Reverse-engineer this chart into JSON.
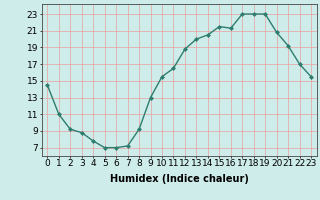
{
  "x": [
    0,
    1,
    2,
    3,
    4,
    5,
    6,
    7,
    8,
    9,
    10,
    11,
    12,
    13,
    14,
    15,
    16,
    17,
    18,
    19,
    20,
    21,
    22,
    23
  ],
  "y": [
    14.5,
    11,
    9.2,
    8.8,
    7.8,
    7.0,
    7.0,
    7.2,
    9.2,
    13.0,
    15.5,
    16.5,
    18.8,
    20.0,
    20.5,
    21.5,
    21.3,
    23.0,
    23.0,
    23.0,
    20.8,
    19.2,
    17.0,
    15.5
  ],
  "line_color": "#2e7d6e",
  "marker": "D",
  "markersize": 2.0,
  "linewidth": 1.0,
  "xlabel": "Humidex (Indice chaleur)",
  "xlabel_fontsize": 7,
  "ytick_labels": [
    "7",
    "9",
    "11",
    "13",
    "15",
    "17",
    "19",
    "21",
    "23"
  ],
  "ytick_vals": [
    7,
    9,
    11,
    13,
    15,
    17,
    19,
    21,
    23
  ],
  "xlim": [
    -0.5,
    23.5
  ],
  "ylim": [
    6.0,
    24.2
  ],
  "bg_color": "#ceecea",
  "grid_color": "#e8a0a0",
  "tick_fontsize": 6.5
}
